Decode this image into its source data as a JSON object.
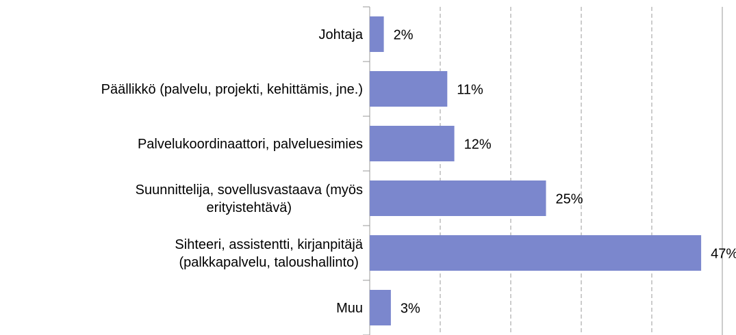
{
  "chart_data": {
    "type": "bar",
    "orientation": "horizontal",
    "categories": [
      "Johtaja",
      "Päällikkö (palvelu, projekti, kehittämis, jne.)",
      "Palvelukoordinaattori, palveluesimies",
      "Suunnittelija, sovellusvastaava (myös\nerityistehtävä)",
      "Sihteeri, assistentti, kirjanpitäjä\n(palkkapalvelu, taloushallinto)",
      "Muu"
    ],
    "values": [
      2,
      11,
      12,
      25,
      47,
      3
    ],
    "value_labels": [
      "2%",
      "11%",
      "12%",
      "25%",
      "47%",
      "3%"
    ],
    "color": "#7b87cd",
    "xlim": [
      0,
      50
    ],
    "xticks": [
      10,
      20,
      30,
      40
    ],
    "grid": true
  }
}
